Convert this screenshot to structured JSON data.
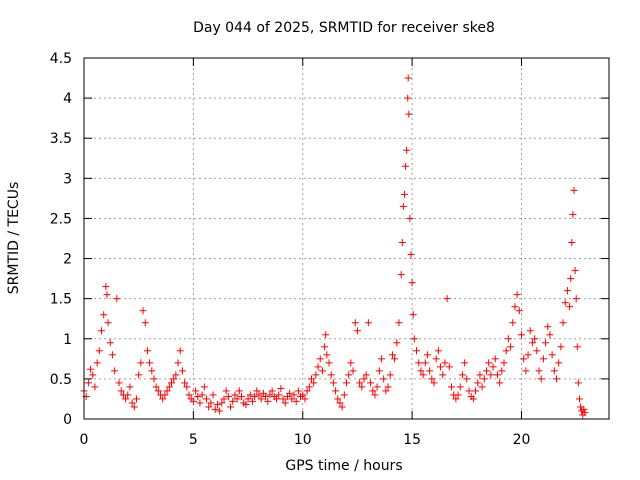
{
  "chart_data": {
    "type": "scatter",
    "title": "Day 044 of 2025, SRMTID for receiver ske8",
    "xlabel": "GPS time / hours",
    "ylabel": "SRMTID / TECUs",
    "xlim": [
      0,
      24
    ],
    "ylim": [
      0,
      4.5
    ],
    "x_ticks": [
      "0",
      "5",
      "10",
      "15",
      "20"
    ],
    "y_ticks": [
      "0",
      "0.5",
      "1",
      "1.5",
      "2",
      "2.5",
      "3",
      "3.5",
      "4",
      "4.5"
    ],
    "marker": "+",
    "color": "#ff0000",
    "series": [
      {
        "name": "SRMTID",
        "points": [
          [
            0.0,
            0.35
          ],
          [
            0.1,
            0.28
          ],
          [
            0.2,
            0.45
          ],
          [
            0.3,
            0.62
          ],
          [
            0.4,
            0.55
          ],
          [
            0.5,
            0.4
          ],
          [
            0.6,
            0.7
          ],
          [
            0.7,
            0.85
          ],
          [
            0.8,
            1.1
          ],
          [
            0.9,
            1.3
          ],
          [
            1.0,
            1.65
          ],
          [
            1.05,
            1.55
          ],
          [
            1.1,
            1.2
          ],
          [
            1.2,
            0.95
          ],
          [
            1.3,
            0.8
          ],
          [
            1.4,
            0.6
          ],
          [
            1.5,
            1.5
          ],
          [
            1.6,
            0.45
          ],
          [
            1.7,
            0.35
          ],
          [
            1.8,
            0.3
          ],
          [
            1.9,
            0.25
          ],
          [
            2.0,
            0.3
          ],
          [
            2.1,
            0.4
          ],
          [
            2.2,
            0.2
          ],
          [
            2.3,
            0.15
          ],
          [
            2.4,
            0.25
          ],
          [
            2.5,
            0.55
          ],
          [
            2.6,
            0.7
          ],
          [
            2.7,
            1.35
          ],
          [
            2.8,
            1.2
          ],
          [
            2.9,
            0.85
          ],
          [
            3.0,
            0.7
          ],
          [
            3.1,
            0.6
          ],
          [
            3.2,
            0.5
          ],
          [
            3.3,
            0.4
          ],
          [
            3.4,
            0.35
          ],
          [
            3.5,
            0.3
          ],
          [
            3.6,
            0.25
          ],
          [
            3.7,
            0.3
          ],
          [
            3.8,
            0.35
          ],
          [
            3.9,
            0.4
          ],
          [
            4.0,
            0.45
          ],
          [
            4.1,
            0.5
          ],
          [
            4.2,
            0.55
          ],
          [
            4.3,
            0.7
          ],
          [
            4.4,
            0.85
          ],
          [
            4.5,
            0.6
          ],
          [
            4.6,
            0.45
          ],
          [
            4.7,
            0.4
          ],
          [
            4.8,
            0.3
          ],
          [
            4.9,
            0.25
          ],
          [
            5.0,
            0.22
          ],
          [
            5.1,
            0.35
          ],
          [
            5.2,
            0.28
          ],
          [
            5.3,
            0.2
          ],
          [
            5.4,
            0.3
          ],
          [
            5.5,
            0.4
          ],
          [
            5.6,
            0.25
          ],
          [
            5.7,
            0.15
          ],
          [
            5.8,
            0.2
          ],
          [
            5.9,
            0.3
          ],
          [
            6.0,
            0.12
          ],
          [
            6.1,
            0.18
          ],
          [
            6.2,
            0.1
          ],
          [
            6.3,
            0.2
          ],
          [
            6.4,
            0.25
          ],
          [
            6.5,
            0.35
          ],
          [
            6.6,
            0.28
          ],
          [
            6.7,
            0.15
          ],
          [
            6.8,
            0.22
          ],
          [
            6.9,
            0.3
          ],
          [
            7.0,
            0.25
          ],
          [
            7.1,
            0.35
          ],
          [
            7.2,
            0.28
          ],
          [
            7.3,
            0.2
          ],
          [
            7.4,
            0.18
          ],
          [
            7.5,
            0.25
          ],
          [
            7.6,
            0.3
          ],
          [
            7.7,
            0.22
          ],
          [
            7.8,
            0.28
          ],
          [
            7.9,
            0.35
          ],
          [
            8.0,
            0.3
          ],
          [
            8.1,
            0.25
          ],
          [
            8.2,
            0.32
          ],
          [
            8.3,
            0.28
          ],
          [
            8.4,
            0.22
          ],
          [
            8.5,
            0.3
          ],
          [
            8.6,
            0.35
          ],
          [
            8.7,
            0.28
          ],
          [
            8.8,
            0.25
          ],
          [
            8.9,
            0.3
          ],
          [
            9.0,
            0.38
          ],
          [
            9.1,
            0.25
          ],
          [
            9.2,
            0.2
          ],
          [
            9.3,
            0.28
          ],
          [
            9.4,
            0.32
          ],
          [
            9.5,
            0.25
          ],
          [
            9.6,
            0.3
          ],
          [
            9.7,
            0.22
          ],
          [
            9.8,
            0.35
          ],
          [
            9.9,
            0.28
          ],
          [
            10.0,
            0.3
          ],
          [
            10.1,
            0.25
          ],
          [
            10.2,
            0.35
          ],
          [
            10.3,
            0.4
          ],
          [
            10.4,
            0.5
          ],
          [
            10.5,
            0.45
          ],
          [
            10.6,
            0.55
          ],
          [
            10.7,
            0.65
          ],
          [
            10.8,
            0.75
          ],
          [
            10.9,
            0.6
          ],
          [
            11.0,
            0.9
          ],
          [
            11.05,
            1.05
          ],
          [
            11.1,
            0.8
          ],
          [
            11.2,
            0.7
          ],
          [
            11.3,
            0.55
          ],
          [
            11.4,
            0.45
          ],
          [
            11.5,
            0.35
          ],
          [
            11.6,
            0.25
          ],
          [
            11.7,
            0.2
          ],
          [
            11.8,
            0.15
          ],
          [
            11.9,
            0.3
          ],
          [
            12.0,
            0.45
          ],
          [
            12.1,
            0.55
          ],
          [
            12.2,
            0.7
          ],
          [
            12.3,
            0.6
          ],
          [
            12.4,
            1.2
          ],
          [
            12.5,
            1.1
          ],
          [
            12.6,
            0.45
          ],
          [
            12.7,
            0.4
          ],
          [
            12.8,
            0.5
          ],
          [
            12.9,
            0.55
          ],
          [
            13.0,
            1.2
          ],
          [
            13.1,
            0.45
          ],
          [
            13.2,
            0.35
          ],
          [
            13.3,
            0.3
          ],
          [
            13.4,
            0.4
          ],
          [
            13.5,
            0.6
          ],
          [
            13.6,
            0.75
          ],
          [
            13.7,
            0.5
          ],
          [
            13.8,
            0.35
          ],
          [
            13.9,
            0.4
          ],
          [
            14.0,
            0.55
          ],
          [
            14.1,
            0.8
          ],
          [
            14.2,
            0.75
          ],
          [
            14.3,
            0.95
          ],
          [
            14.4,
            1.2
          ],
          [
            14.5,
            1.8
          ],
          [
            14.55,
            2.2
          ],
          [
            14.6,
            2.65
          ],
          [
            14.65,
            2.8
          ],
          [
            14.7,
            3.15
          ],
          [
            14.75,
            3.35
          ],
          [
            14.8,
            4.0
          ],
          [
            14.82,
            4.25
          ],
          [
            14.85,
            3.8
          ],
          [
            14.9,
            2.5
          ],
          [
            14.95,
            2.05
          ],
          [
            15.0,
            1.7
          ],
          [
            15.05,
            1.3
          ],
          [
            15.1,
            1.0
          ],
          [
            15.2,
            0.85
          ],
          [
            15.3,
            0.7
          ],
          [
            15.4,
            0.6
          ],
          [
            15.5,
            0.55
          ],
          [
            15.6,
            0.7
          ],
          [
            15.7,
            0.8
          ],
          [
            15.8,
            0.6
          ],
          [
            15.9,
            0.5
          ],
          [
            16.0,
            0.45
          ],
          [
            16.1,
            0.75
          ],
          [
            16.2,
            0.85
          ],
          [
            16.3,
            0.65
          ],
          [
            16.4,
            0.55
          ],
          [
            16.5,
            0.7
          ],
          [
            16.6,
            1.5
          ],
          [
            16.7,
            0.65
          ],
          [
            16.8,
            0.4
          ],
          [
            16.9,
            0.3
          ],
          [
            17.0,
            0.25
          ],
          [
            17.1,
            0.3
          ],
          [
            17.2,
            0.4
          ],
          [
            17.3,
            0.55
          ],
          [
            17.4,
            0.7
          ],
          [
            17.5,
            0.5
          ],
          [
            17.6,
            0.35
          ],
          [
            17.7,
            0.28
          ],
          [
            17.8,
            0.25
          ],
          [
            17.9,
            0.35
          ],
          [
            18.0,
            0.45
          ],
          [
            18.1,
            0.55
          ],
          [
            18.2,
            0.4
          ],
          [
            18.3,
            0.5
          ],
          [
            18.4,
            0.6
          ],
          [
            18.5,
            0.7
          ],
          [
            18.6,
            0.55
          ],
          [
            18.7,
            0.65
          ],
          [
            18.8,
            0.75
          ],
          [
            18.9,
            0.55
          ],
          [
            19.0,
            0.45
          ],
          [
            19.1,
            0.6
          ],
          [
            19.2,
            0.7
          ],
          [
            19.3,
            0.85
          ],
          [
            19.4,
            1.0
          ],
          [
            19.5,
            0.9
          ],
          [
            19.6,
            1.2
          ],
          [
            19.7,
            1.4
          ],
          [
            19.8,
            1.55
          ],
          [
            19.9,
            1.35
          ],
          [
            20.0,
            1.05
          ],
          [
            20.1,
            0.75
          ],
          [
            20.2,
            0.6
          ],
          [
            20.3,
            0.8
          ],
          [
            20.4,
            1.1
          ],
          [
            20.5,
            0.95
          ],
          [
            20.6,
            1.0
          ],
          [
            20.7,
            0.85
          ],
          [
            20.8,
            0.6
          ],
          [
            20.9,
            0.5
          ],
          [
            21.0,
            0.75
          ],
          [
            21.1,
            0.95
          ],
          [
            21.2,
            1.15
          ],
          [
            21.3,
            1.05
          ],
          [
            21.4,
            0.8
          ],
          [
            21.5,
            0.6
          ],
          [
            21.6,
            0.5
          ],
          [
            21.7,
            0.7
          ],
          [
            21.8,
            0.9
          ],
          [
            21.9,
            1.2
          ],
          [
            22.0,
            1.45
          ],
          [
            22.1,
            1.6
          ],
          [
            22.2,
            1.4
          ],
          [
            22.25,
            1.75
          ],
          [
            22.3,
            2.2
          ],
          [
            22.35,
            2.55
          ],
          [
            22.4,
            2.85
          ],
          [
            22.45,
            1.85
          ],
          [
            22.5,
            1.5
          ],
          [
            22.55,
            0.9
          ],
          [
            22.6,
            0.45
          ],
          [
            22.65,
            0.25
          ],
          [
            22.7,
            0.15
          ],
          [
            22.75,
            0.1
          ],
          [
            22.8,
            0.05
          ],
          [
            22.85,
            0.12
          ],
          [
            22.9,
            0.08
          ]
        ]
      }
    ]
  }
}
